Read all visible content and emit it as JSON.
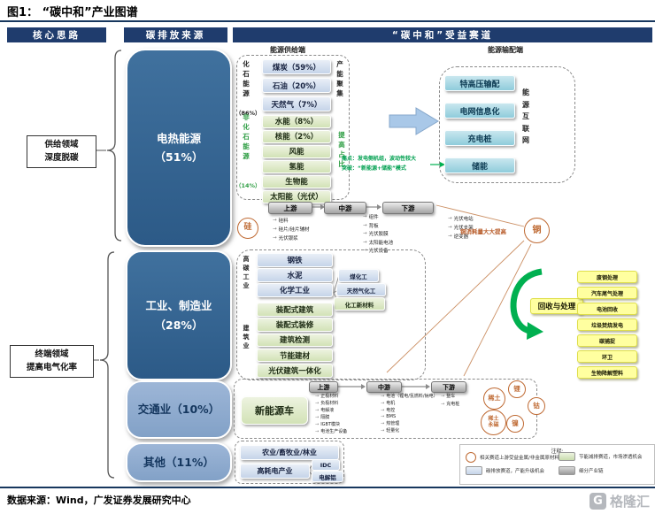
{
  "title": "图1：  “碳中和”产业图谱",
  "headers": {
    "core": "核心思路",
    "source": "碳排放来源",
    "track": "“碳中和”受益赛道"
  },
  "left_notes": {
    "supply": "供给领域\n深度脱碳",
    "terminal": "终端领域\n提高电气化率"
  },
  "sources": {
    "power": "电热能源\n（51%）",
    "industry": "工业、制造业\n（28%）",
    "transport": "交通业（10%）",
    "others": "其他（11%）"
  },
  "energy_supply": {
    "title": "能源供给端",
    "fossil_label": "化石能源",
    "fossil_pct": "（86%）",
    "fossil_items": [
      "煤炭（59%）",
      "石油（20%）",
      "天然气（7%）"
    ],
    "agg_label": "产能聚集",
    "nonfossil_label": "非化石能源",
    "nonfossil_pct": "（14%）",
    "green_items": [
      "水能（8%）",
      "核能（2%）",
      "风能",
      "氢能",
      "生物能",
      "太阳能（光伏）"
    ],
    "raise_label": "提高占比"
  },
  "energy_grid": {
    "title": "能源输配端",
    "items": [
      "特高压输配",
      "电网信息化",
      "充电桩",
      "储能"
    ],
    "side_label": "能源互联网"
  },
  "storage_note": "痛点：发电侧机组，波动性较大\n突破：“新能源+储能”模式",
  "pv_chain": {
    "stages": [
      "上游",
      "中游",
      "下游"
    ],
    "upstream": [
      "硅料",
      "硅片/硅片辅材",
      "光伏银浆"
    ],
    "midstream": [
      "组件",
      "背板",
      "光伏胶膜",
      "太阳能电池",
      "光伏设备"
    ],
    "downstream": [
      "光伏电站",
      "光伏支架",
      "逆变器"
    ],
    "mineral": "硅"
  },
  "copper_note": {
    "text": "铜消耗量大大提高",
    "mineral": "铜"
  },
  "industry": {
    "high_carbon_label": "高碳工业",
    "blue_items": [
      "钢铁",
      "水泥",
      "化学工业"
    ],
    "chem_branches": [
      "煤化工",
      "天然气化工",
      "化工新材料"
    ],
    "construction_label": "建筑业",
    "green_items": [
      "装配式建筑",
      "装配式装修",
      "建筑检测",
      "节能建材",
      "光伏建筑一体化"
    ]
  },
  "recycle": {
    "label": "回收与处理",
    "items": [
      "废钢处理",
      "汽车尾气处理",
      "电池回收",
      "垃圾焚烧发电",
      "碳捕捉",
      "环卫",
      "生物降解塑料"
    ]
  },
  "nev_chain": {
    "label": "新能源车",
    "stages": [
      "上游",
      "中游",
      "下游"
    ],
    "upstream": [
      "正极材料",
      "负极材料",
      "电解液",
      "隔膜",
      "IGBT模块",
      "电池生产设备"
    ],
    "midstream": [
      "电池（锂电/氢燃料/钠电）",
      "电机",
      "电控",
      "BMS",
      "热管理",
      "轻量化"
    ],
    "downstream": [
      "整车",
      "充电桩"
    ],
    "minerals": [
      "稀土",
      "锂",
      "钴",
      "稀土\n永磁",
      "镍"
    ]
  },
  "others_group": {
    "item1": "农业/畜牧业/林业",
    "item2": "高耗电产业",
    "branches": [
      "IDC",
      "电解铝"
    ]
  },
  "legend": {
    "title": "注释:",
    "circle": "相关赛道上游受益金属/非金属原材料",
    "blue": "碳排放赛道，产能升级机会",
    "green": "节能减排赛道，市场渗透机会",
    "gray": "细分产业链"
  },
  "footer": {
    "source": "数据来源：Wind，广发证券发展研究中心",
    "watermark_icon": "G",
    "watermark": "格隆汇"
  },
  "colors": {
    "header_navy": "#1f3c6d",
    "box_dark_blue": "#2c5a87",
    "box_light_blue": "#8fabd0",
    "chip_blue": "#c5d4e9",
    "chip_green": "#d2e2b6",
    "chip_cyan": "#8fccdb",
    "chip_yellow": "#ffffa0",
    "mineral_orange": "#bf6a33",
    "note_green": "#00a050",
    "arrow_green": "#00b050",
    "arrow_blue": "#a9c8e8"
  }
}
